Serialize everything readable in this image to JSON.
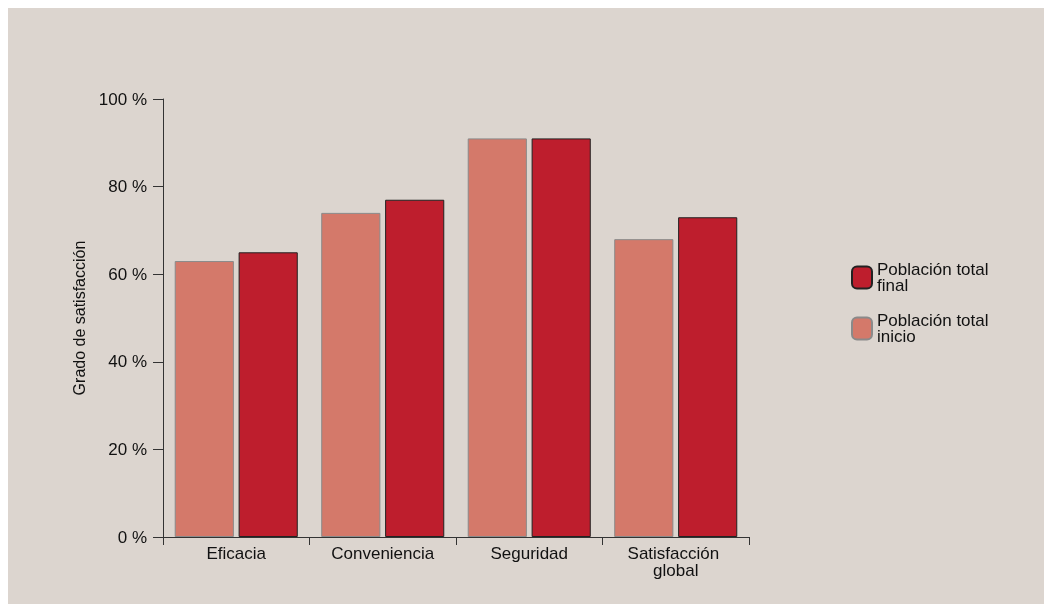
{
  "chart_data": {
    "type": "bar",
    "ylabel": "Grado de satisfacción",
    "categories": [
      "Eficacia",
      "Conveniencia",
      "Seguridad",
      "Satisfacción global"
    ],
    "series": [
      {
        "name": "Población total inicio",
        "color": "#d4796a",
        "values": [
          63,
          74,
          91,
          68
        ]
      },
      {
        "name": "Población total final",
        "color": "#be1e2d",
        "values": [
          65,
          77,
          91,
          73
        ]
      }
    ],
    "ylim": [
      0,
      100
    ],
    "yticks": [
      {
        "value": 0,
        "label": "0 %"
      },
      {
        "value": 20,
        "label": "20 %"
      },
      {
        "value": 40,
        "label": "40 %"
      },
      {
        "value": 60,
        "label": "60 %"
      },
      {
        "value": 80,
        "label": "80 %"
      },
      {
        "value": 100,
        "label": "100 %"
      }
    ],
    "grid": false,
    "legend": "right"
  }
}
